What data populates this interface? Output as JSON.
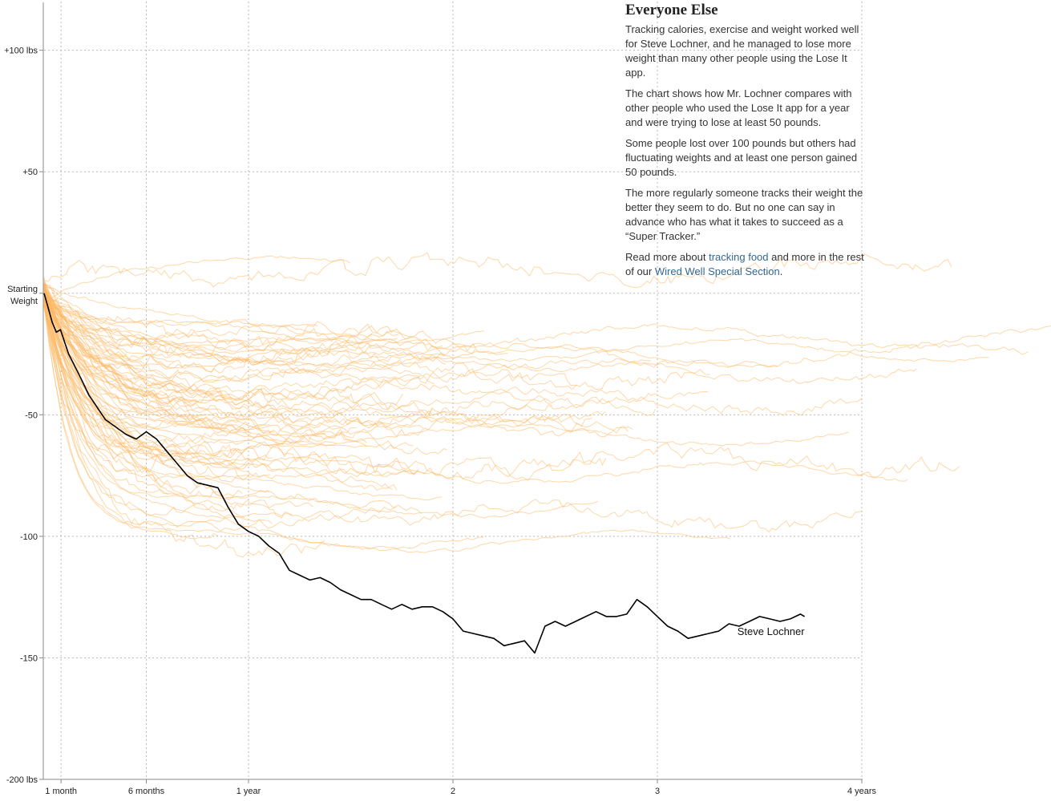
{
  "annotation": {
    "title": "Everyone Else",
    "p1": "Tracking calories, exercise and weight worked well for Steve Lochner, and he managed to lose more weight than many other people using the Lose It app.",
    "p2": "The chart shows how Mr. Lochner compares with other people who used the Lose It app for a year and were trying to lose at least 50 pounds.",
    "p3": "Some people lost over 100 pounds but others had fluctuating weights and at least one person gained 50 pounds.",
    "p4": "The more regularly someone tracks their weight the better they seem to do. But no one can say in advance who has what it takes to succeed as a “Super Tracker.”",
    "p5_before": "Read more about ",
    "p5_link1": "tracking food",
    "p5_middle": " and more in the rest of our ",
    "p5_link2": "Wired Well Special Section",
    "p5_after": "."
  },
  "chart_data": {
    "type": "line",
    "title": "",
    "xlabel": "",
    "ylabel": "",
    "x_unit": "years",
    "xlim": [
      0,
      4
    ],
    "ylim": [
      -200,
      120
    ],
    "grid": true,
    "y_ticks": [
      {
        "value": 100,
        "label": "+100 lbs"
      },
      {
        "value": 50,
        "label": "+50"
      },
      {
        "value": 0,
        "label": "Starting Weight"
      },
      {
        "value": -50,
        "label": "-50"
      },
      {
        "value": -100,
        "label": "-100"
      },
      {
        "value": -150,
        "label": "-150"
      },
      {
        "value": -200,
        "label": "-200 lbs"
      }
    ],
    "x_ticks": [
      {
        "value": 0.083,
        "label": "1 month"
      },
      {
        "value": 0.5,
        "label": "6 months"
      },
      {
        "value": 1,
        "label": "1 year"
      },
      {
        "value": 2,
        "label": "2"
      },
      {
        "value": 3,
        "label": "3"
      },
      {
        "value": 4,
        "label": "4 years"
      }
    ],
    "colors": {
      "highlight": "#000000",
      "others": "#fdb863",
      "grid": "#bbbbbb"
    },
    "series": [
      {
        "name": "Steve Lochner",
        "highlight": true,
        "x": [
          0,
          0.04,
          0.06,
          0.08,
          0.1,
          0.12,
          0.15,
          0.18,
          0.22,
          0.26,
          0.3,
          0.35,
          0.4,
          0.45,
          0.5,
          0.55,
          0.6,
          0.65,
          0.7,
          0.75,
          0.8,
          0.85,
          0.9,
          0.95,
          1.0,
          1.05,
          1.1,
          1.15,
          1.2,
          1.25,
          1.3,
          1.35,
          1.4,
          1.45,
          1.5,
          1.55,
          1.6,
          1.65,
          1.7,
          1.75,
          1.8,
          1.85,
          1.9,
          1.95,
          2.0,
          2.05,
          2.1,
          2.15,
          2.2,
          2.25,
          2.3,
          2.35,
          2.4,
          2.45,
          2.5,
          2.55,
          2.6,
          2.65,
          2.7,
          2.75,
          2.8,
          2.85,
          2.9,
          2.95,
          3.0,
          3.05,
          3.1,
          3.15,
          3.2,
          3.25,
          3.3,
          3.35,
          3.4,
          3.45,
          3.5,
          3.55,
          3.6,
          3.65,
          3.7,
          3.72
        ],
        "y": [
          0,
          -12,
          -16,
          -15,
          -20,
          -25,
          -30,
          -35,
          -42,
          -47,
          -52,
          -55,
          -58,
          -60,
          -57,
          -60,
          -65,
          -70,
          -75,
          -78,
          -79,
          -80,
          -88,
          -95,
          -98,
          -100,
          -104,
          -107,
          -114,
          -116,
          -118,
          -117,
          -119,
          -122,
          -124,
          -126,
          -126,
          -128,
          -130,
          -128,
          -130,
          -129,
          -129,
          -131,
          -134,
          -139,
          -140,
          -141,
          -142,
          -145,
          -144,
          -143,
          -148,
          -137,
          -135,
          -137,
          -135,
          -133,
          -131,
          -133,
          -133,
          -132,
          -126,
          -129,
          -133,
          -137,
          -139,
          -142,
          -141,
          -140,
          -139,
          -136,
          -137,
          -135,
          -133,
          -134,
          -135,
          -134,
          -132,
          -133
        ]
      }
    ]
  }
}
